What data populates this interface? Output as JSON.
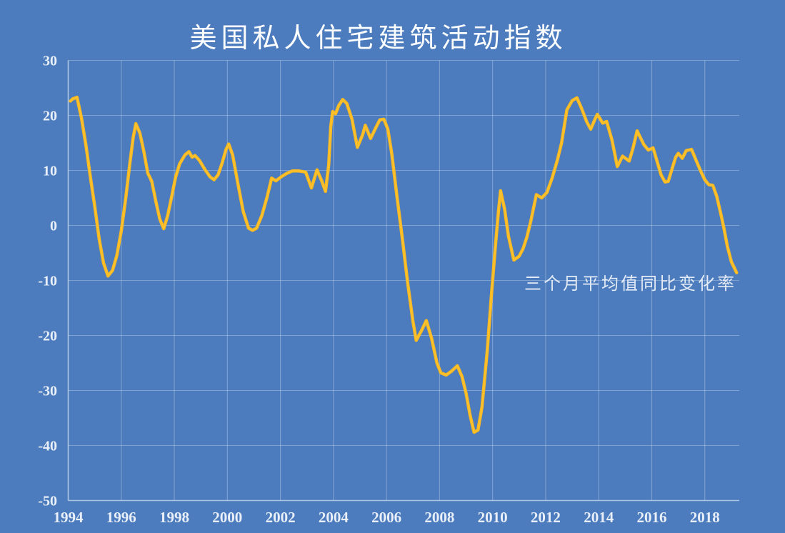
{
  "chart_data": {
    "type": "line",
    "title": "美国私人住宅建筑活动指数",
    "annotation": "三个月平均值同比变化率",
    "xlabel": "",
    "ylabel": "",
    "xlim": [
      1994,
      2019.3
    ],
    "ylim": [
      -50,
      30
    ],
    "x_ticks": [
      1994,
      1996,
      1998,
      2000,
      2002,
      2004,
      2006,
      2008,
      2010,
      2012,
      2014,
      2016,
      2018
    ],
    "y_ticks": [
      30,
      20,
      10,
      0,
      -10,
      -20,
      -30,
      -40,
      -50
    ],
    "grid": true,
    "legend_position": "none",
    "colors": {
      "background": "#4C7CBD",
      "line": "#F7B821",
      "gridline": "rgba(232,240,250,0.32)",
      "axis": "rgba(232,240,250,0.62)",
      "tick_label": "#E9EFF8",
      "title": "#FBFDFF"
    },
    "series": [
      {
        "name": "三个月平均值同比变化率",
        "points": [
          [
            1994.08,
            22.6
          ],
          [
            1994.17,
            23.0
          ],
          [
            1994.33,
            23.3
          ],
          [
            1994.5,
            19.5
          ],
          [
            1994.67,
            14.5
          ],
          [
            1994.83,
            9.0
          ],
          [
            1995.0,
            3.5
          ],
          [
            1995.17,
            -2.5
          ],
          [
            1995.33,
            -6.8
          ],
          [
            1995.5,
            -9.2
          ],
          [
            1995.67,
            -8.2
          ],
          [
            1995.83,
            -5.5
          ],
          [
            1996.0,
            -1.0
          ],
          [
            1996.17,
            5.0
          ],
          [
            1996.33,
            11.5
          ],
          [
            1996.45,
            16.0
          ],
          [
            1996.55,
            18.5
          ],
          [
            1996.7,
            16.8
          ],
          [
            1996.85,
            13.5
          ],
          [
            1997.0,
            9.5
          ],
          [
            1997.15,
            8.0
          ],
          [
            1997.3,
            4.5
          ],
          [
            1997.45,
            1.2
          ],
          [
            1997.6,
            -0.6
          ],
          [
            1997.75,
            1.8
          ],
          [
            1997.9,
            5.2
          ],
          [
            1998.05,
            8.8
          ],
          [
            1998.2,
            11.2
          ],
          [
            1998.4,
            12.8
          ],
          [
            1998.55,
            13.4
          ],
          [
            1998.67,
            12.4
          ],
          [
            1998.78,
            12.7
          ],
          [
            1998.95,
            11.8
          ],
          [
            1999.15,
            10.2
          ],
          [
            1999.35,
            8.8
          ],
          [
            1999.5,
            8.3
          ],
          [
            1999.65,
            9.2
          ],
          [
            1999.8,
            11.3
          ],
          [
            1999.95,
            13.8
          ],
          [
            2000.05,
            14.8
          ],
          [
            2000.2,
            12.8
          ],
          [
            2000.4,
            7.5
          ],
          [
            2000.6,
            2.5
          ],
          [
            2000.8,
            -0.5
          ],
          [
            2000.95,
            -0.9
          ],
          [
            2001.1,
            -0.5
          ],
          [
            2001.3,
            1.8
          ],
          [
            2001.5,
            5.2
          ],
          [
            2001.67,
            8.6
          ],
          [
            2001.83,
            8.1
          ],
          [
            2002.05,
            8.9
          ],
          [
            2002.25,
            9.5
          ],
          [
            2002.45,
            9.9
          ],
          [
            2002.7,
            9.9
          ],
          [
            2002.95,
            9.7
          ],
          [
            2003.17,
            6.8
          ],
          [
            2003.38,
            10.1
          ],
          [
            2003.55,
            8.2
          ],
          [
            2003.7,
            6.2
          ],
          [
            2003.82,
            11.0
          ],
          [
            2003.9,
            18.0
          ],
          [
            2003.97,
            20.7
          ],
          [
            2004.08,
            20.3
          ],
          [
            2004.2,
            21.8
          ],
          [
            2004.35,
            22.9
          ],
          [
            2004.5,
            22.2
          ],
          [
            2004.7,
            19.3
          ],
          [
            2004.9,
            14.2
          ],
          [
            2005.1,
            16.5
          ],
          [
            2005.2,
            18.2
          ],
          [
            2005.4,
            15.8
          ],
          [
            2005.6,
            17.8
          ],
          [
            2005.75,
            19.2
          ],
          [
            2005.9,
            19.3
          ],
          [
            2006.05,
            17.5
          ],
          [
            2006.2,
            13.0
          ],
          [
            2006.4,
            5.0
          ],
          [
            2006.6,
            -2.5
          ],
          [
            2006.8,
            -10.5
          ],
          [
            2007.0,
            -17.5
          ],
          [
            2007.12,
            -20.9
          ],
          [
            2007.3,
            -19.3
          ],
          [
            2007.5,
            -17.3
          ],
          [
            2007.7,
            -20.5
          ],
          [
            2007.9,
            -25.0
          ],
          [
            2008.05,
            -26.8
          ],
          [
            2008.25,
            -27.2
          ],
          [
            2008.45,
            -26.5
          ],
          [
            2008.67,
            -25.5
          ],
          [
            2008.85,
            -27.5
          ],
          [
            2009.0,
            -30.5
          ],
          [
            2009.15,
            -34.5
          ],
          [
            2009.3,
            -37.6
          ],
          [
            2009.45,
            -37.2
          ],
          [
            2009.6,
            -33.0
          ],
          [
            2009.8,
            -22.7
          ],
          [
            2009.95,
            -13.0
          ],
          [
            2010.1,
            -4.0
          ],
          [
            2010.22,
            2.5
          ],
          [
            2010.3,
            6.3
          ],
          [
            2010.45,
            3.0
          ],
          [
            2010.6,
            -2.0
          ],
          [
            2010.8,
            -6.3
          ],
          [
            2011.0,
            -5.6
          ],
          [
            2011.15,
            -4.2
          ],
          [
            2011.3,
            -2.0
          ],
          [
            2011.45,
            1.0
          ],
          [
            2011.65,
            5.6
          ],
          [
            2011.85,
            5.0
          ],
          [
            2012.05,
            6.0
          ],
          [
            2012.25,
            8.7
          ],
          [
            2012.45,
            12.0
          ],
          [
            2012.6,
            15.0
          ],
          [
            2012.8,
            21.0
          ],
          [
            2013.0,
            22.7
          ],
          [
            2013.18,
            23.2
          ],
          [
            2013.35,
            21.3
          ],
          [
            2013.55,
            18.8
          ],
          [
            2013.7,
            17.5
          ],
          [
            2013.85,
            19.2
          ],
          [
            2013.95,
            20.2
          ],
          [
            2014.15,
            18.6
          ],
          [
            2014.3,
            18.9
          ],
          [
            2014.5,
            15.5
          ],
          [
            2014.7,
            10.7
          ],
          [
            2014.9,
            12.6
          ],
          [
            2015.15,
            11.7
          ],
          [
            2015.3,
            14.2
          ],
          [
            2015.45,
            17.2
          ],
          [
            2015.7,
            14.7
          ],
          [
            2015.87,
            13.7
          ],
          [
            2016.05,
            14.1
          ],
          [
            2016.35,
            9.2
          ],
          [
            2016.5,
            7.9
          ],
          [
            2016.62,
            8.0
          ],
          [
            2016.9,
            12.4
          ],
          [
            2017.0,
            13.1
          ],
          [
            2017.15,
            12.2
          ],
          [
            2017.3,
            13.6
          ],
          [
            2017.5,
            13.8
          ],
          [
            2017.7,
            11.5
          ],
          [
            2017.85,
            9.8
          ],
          [
            2018.0,
            8.3
          ],
          [
            2018.15,
            7.4
          ],
          [
            2018.3,
            7.3
          ],
          [
            2018.45,
            5.3
          ],
          [
            2018.6,
            2.2
          ],
          [
            2018.72,
            -0.5
          ],
          [
            2018.85,
            -3.8
          ],
          [
            2019.0,
            -6.6
          ],
          [
            2019.1,
            -7.6
          ],
          [
            2019.2,
            -8.6
          ]
        ]
      }
    ]
  }
}
